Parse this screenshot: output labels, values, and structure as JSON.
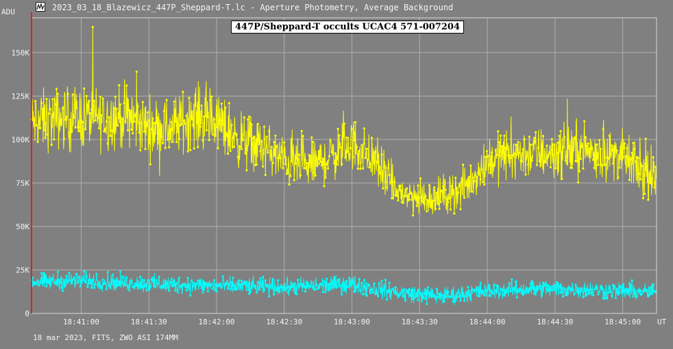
{
  "window": {
    "title": "2023_03_18_Blazewicz_447P_Sheppard-T.lc - Aperture Photometry, Average Background",
    "icon": "light-curve-app-icon"
  },
  "footer": {
    "info": "18 mar 2023, FITS, ZWO ASI 174MM"
  },
  "colors": {
    "background": "#808080",
    "grid": "#b0b0b0",
    "target": "#ffff00",
    "background_series": "#00ffff",
    "marker": "#ff0000"
  },
  "chart_data": {
    "type": "scatter",
    "title": "447P/Sheppard-T occults UCAC4 571-007204",
    "ylabel": "ADU",
    "xlabel": "UT",
    "grid": true,
    "xlim": [
      "18:40:38",
      "18:45:15"
    ],
    "ylim": [
      0,
      170000
    ],
    "x_ticks": [
      "18:41:00",
      "18:41:30",
      "18:42:00",
      "18:42:30",
      "18:43:00",
      "18:43:30",
      "18:44:00",
      "18:44:30",
      "18:45:00"
    ],
    "y_ticks": [
      {
        "value": 0,
        "label": "0"
      },
      {
        "value": 25000,
        "label": "25K"
      },
      {
        "value": 50000,
        "label": "50K"
      },
      {
        "value": 75000,
        "label": "75K"
      },
      {
        "value": 100000,
        "label": "100K"
      },
      {
        "value": 125000,
        "label": "125K"
      },
      {
        "value": 150000,
        "label": "150K"
      }
    ],
    "marker_line_x": "18:40:38",
    "series": [
      {
        "color": "#ffff00",
        "trend": [
          [
            "18:40:38",
            110000
          ],
          [
            "18:40:50",
            112000
          ],
          [
            "18:41:00",
            113000
          ],
          [
            "18:41:10",
            112000
          ],
          [
            "18:41:20",
            113000
          ],
          [
            "18:41:30",
            107000
          ],
          [
            "18:41:40",
            107000
          ],
          [
            "18:41:50",
            114000
          ],
          [
            "18:42:00",
            110000
          ],
          [
            "18:42:10",
            100000
          ],
          [
            "18:42:20",
            96000
          ],
          [
            "18:42:30",
            88000
          ],
          [
            "18:42:40",
            84000
          ],
          [
            "18:42:50",
            90000
          ],
          [
            "18:43:00",
            98000
          ],
          [
            "18:43:10",
            88000
          ],
          [
            "18:43:20",
            70000
          ],
          [
            "18:43:30",
            66000
          ],
          [
            "18:43:40",
            68000
          ],
          [
            "18:43:50",
            72000
          ],
          [
            "18:44:00",
            88000
          ],
          [
            "18:44:10",
            92000
          ],
          [
            "18:44:20",
            92000
          ],
          [
            "18:44:30",
            92000
          ],
          [
            "18:44:40",
            95000
          ],
          [
            "18:44:50",
            92000
          ],
          [
            "18:45:00",
            90000
          ],
          [
            "18:45:15",
            75000
          ]
        ]
      },
      {
        "color": "#00ffff",
        "trend": [
          [
            "18:40:38",
            18000
          ],
          [
            "18:41:00",
            19000
          ],
          [
            "18:41:30",
            17000
          ],
          [
            "18:42:00",
            16000
          ],
          [
            "18:42:30",
            15000
          ],
          [
            "18:43:00",
            17000
          ],
          [
            "18:43:20",
            12000
          ],
          [
            "18:43:40",
            10000
          ],
          [
            "18:44:00",
            13000
          ],
          [
            "18:44:20",
            14000
          ],
          [
            "18:44:40",
            14000
          ],
          [
            "18:45:00",
            13000
          ],
          [
            "18:45:15",
            12000
          ]
        ]
      }
    ]
  }
}
